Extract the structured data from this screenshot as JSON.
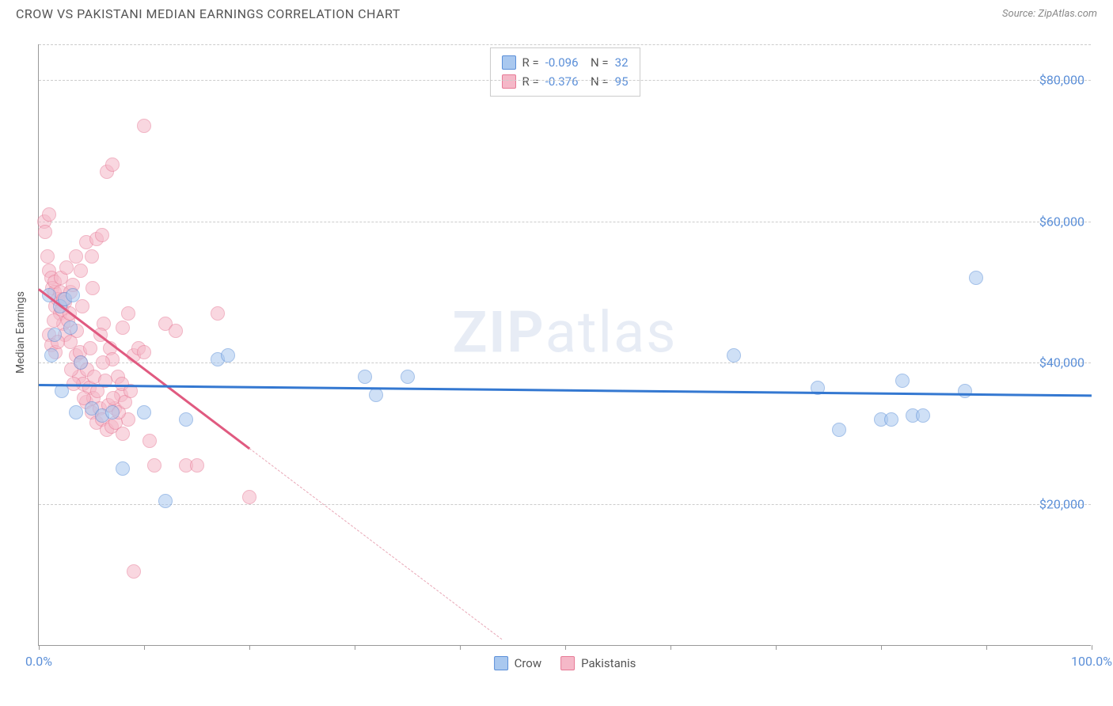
{
  "title": "CROW VS PAKISTANI MEDIAN EARNINGS CORRELATION CHART",
  "source_label": "Source: ZipAtlas.com",
  "y_axis_label": "Median Earnings",
  "watermark_bold": "ZIP",
  "watermark_rest": "atlas",
  "chart": {
    "type": "scatter",
    "xlim": [
      0,
      100
    ],
    "ylim": [
      0,
      85000
    ],
    "x_tick_positions": [
      0,
      10,
      20,
      30,
      40,
      50,
      60,
      70,
      80,
      90,
      100
    ],
    "x_tick_labels": {
      "0": "0.0%",
      "100": "100.0%"
    },
    "y_gridlines": [
      20000,
      40000,
      60000,
      80000
    ],
    "y_tick_labels": [
      "$20,000",
      "$40,000",
      "$60,000",
      "$80,000"
    ],
    "background_color": "#ffffff",
    "grid_color": "#cccccc",
    "axis_color": "#999999",
    "point_radius": 9,
    "point_opacity": 0.55,
    "series": {
      "crow": {
        "label": "Crow",
        "fill_color": "#a9c8ef",
        "stroke_color": "#5b8fd8",
        "r_value": "-0.096",
        "n_value": "32",
        "trend": {
          "x1": 0,
          "y1": 37000,
          "x2": 100,
          "y2": 35500,
          "color": "#3478d1",
          "width": 2.5
        },
        "points": [
          {
            "x": 1.0,
            "y": 49500
          },
          {
            "x": 1.2,
            "y": 41000
          },
          {
            "x": 1.5,
            "y": 44000
          },
          {
            "x": 2.0,
            "y": 48000
          },
          {
            "x": 2.2,
            "y": 36000
          },
          {
            "x": 3.0,
            "y": 45000
          },
          {
            "x": 3.5,
            "y": 33000
          },
          {
            "x": 4.0,
            "y": 40000
          },
          {
            "x": 5.0,
            "y": 33500
          },
          {
            "x": 6.0,
            "y": 32500
          },
          {
            "x": 7.0,
            "y": 33000
          },
          {
            "x": 8.0,
            "y": 25000
          },
          {
            "x": 10.0,
            "y": 33000
          },
          {
            "x": 12.0,
            "y": 20500
          },
          {
            "x": 14.0,
            "y": 32000
          },
          {
            "x": 17.0,
            "y": 40500
          },
          {
            "x": 18.0,
            "y": 41000
          },
          {
            "x": 31.0,
            "y": 38000
          },
          {
            "x": 32.0,
            "y": 35500
          },
          {
            "x": 35.0,
            "y": 38000
          },
          {
            "x": 66.0,
            "y": 41000
          },
          {
            "x": 74.0,
            "y": 36500
          },
          {
            "x": 76.0,
            "y": 30500
          },
          {
            "x": 80.0,
            "y": 32000
          },
          {
            "x": 81.0,
            "y": 32000
          },
          {
            "x": 82.0,
            "y": 37500
          },
          {
            "x": 83.0,
            "y": 32500
          },
          {
            "x": 84.0,
            "y": 32500
          },
          {
            "x": 88.0,
            "y": 36000
          },
          {
            "x": 89.0,
            "y": 52000
          },
          {
            "x": 2.5,
            "y": 49000
          },
          {
            "x": 3.2,
            "y": 49500
          }
        ]
      },
      "pakistanis": {
        "label": "Pakistanis",
        "fill_color": "#f5b8c8",
        "stroke_color": "#e77a96",
        "r_value": "-0.376",
        "n_value": "95",
        "trend_solid": {
          "x1": 0,
          "y1": 50500,
          "x2": 20,
          "y2": 28000,
          "color": "#e05a80",
          "width": 2.5
        },
        "trend_dash": {
          "x1": 20,
          "y1": 28000,
          "x2": 44,
          "y2": 1000,
          "color": "#e8a5b5"
        },
        "points": [
          {
            "x": 0.5,
            "y": 60000
          },
          {
            "x": 0.6,
            "y": 58500
          },
          {
            "x": 0.8,
            "y": 55000
          },
          {
            "x": 1.0,
            "y": 61000
          },
          {
            "x": 1.0,
            "y": 53000
          },
          {
            "x": 1.2,
            "y": 52000
          },
          {
            "x": 1.3,
            "y": 50500
          },
          {
            "x": 1.5,
            "y": 50000
          },
          {
            "x": 1.5,
            "y": 51500
          },
          {
            "x": 1.6,
            "y": 48000
          },
          {
            "x": 1.8,
            "y": 49000
          },
          {
            "x": 2.0,
            "y": 50000
          },
          {
            "x": 2.0,
            "y": 47000
          },
          {
            "x": 2.2,
            "y": 47500
          },
          {
            "x": 2.3,
            "y": 45500
          },
          {
            "x": 2.5,
            "y": 48500
          },
          {
            "x": 2.5,
            "y": 44000
          },
          {
            "x": 2.8,
            "y": 46000
          },
          {
            "x": 3.0,
            "y": 50000
          },
          {
            "x": 3.0,
            "y": 43000
          },
          {
            "x": 3.2,
            "y": 51000
          },
          {
            "x": 3.5,
            "y": 55000
          },
          {
            "x": 3.5,
            "y": 41000
          },
          {
            "x": 3.8,
            "y": 38000
          },
          {
            "x": 4.0,
            "y": 53000
          },
          {
            "x": 4.0,
            "y": 40000
          },
          {
            "x": 4.2,
            "y": 37000
          },
          {
            "x": 4.5,
            "y": 57000
          },
          {
            "x": 4.5,
            "y": 34500
          },
          {
            "x": 4.8,
            "y": 36500
          },
          {
            "x": 5.0,
            "y": 55000
          },
          {
            "x": 5.0,
            "y": 33000
          },
          {
            "x": 5.2,
            "y": 35000
          },
          {
            "x": 5.5,
            "y": 57500
          },
          {
            "x": 5.5,
            "y": 31500
          },
          {
            "x": 5.8,
            "y": 33500
          },
          {
            "x": 6.0,
            "y": 58000
          },
          {
            "x": 6.0,
            "y": 32000
          },
          {
            "x": 6.2,
            "y": 45500
          },
          {
            "x": 6.5,
            "y": 67000
          },
          {
            "x": 6.5,
            "y": 30500
          },
          {
            "x": 6.8,
            "y": 42000
          },
          {
            "x": 7.0,
            "y": 68000
          },
          {
            "x": 7.0,
            "y": 40500
          },
          {
            "x": 7.2,
            "y": 33500
          },
          {
            "x": 7.5,
            "y": 38000
          },
          {
            "x": 7.8,
            "y": 35500
          },
          {
            "x": 8.0,
            "y": 45000
          },
          {
            "x": 8.0,
            "y": 30000
          },
          {
            "x": 8.5,
            "y": 47000
          },
          {
            "x": 8.5,
            "y": 32000
          },
          {
            "x": 9.0,
            "y": 41000
          },
          {
            "x": 9.0,
            "y": 10500
          },
          {
            "x": 9.5,
            "y": 42000
          },
          {
            "x": 10.0,
            "y": 41500
          },
          {
            "x": 10.0,
            "y": 73500
          },
          {
            "x": 10.5,
            "y": 29000
          },
          {
            "x": 11.0,
            "y": 25500
          },
          {
            "x": 12.0,
            "y": 45500
          },
          {
            "x": 13.0,
            "y": 44500
          },
          {
            "x": 14.0,
            "y": 25500
          },
          {
            "x": 15.0,
            "y": 25500
          },
          {
            "x": 17.0,
            "y": 47000
          },
          {
            "x": 20.0,
            "y": 21000
          },
          {
            "x": 1.0,
            "y": 44000
          },
          {
            "x": 1.2,
            "y": 42500
          },
          {
            "x": 1.4,
            "y": 46000
          },
          {
            "x": 1.6,
            "y": 41500
          },
          {
            "x": 1.8,
            "y": 43000
          },
          {
            "x": 2.1,
            "y": 52000
          },
          {
            "x": 2.3,
            "y": 49000
          },
          {
            "x": 2.6,
            "y": 53500
          },
          {
            "x": 2.9,
            "y": 47000
          },
          {
            "x": 3.1,
            "y": 39000
          },
          {
            "x": 3.3,
            "y": 37000
          },
          {
            "x": 3.6,
            "y": 44500
          },
          {
            "x": 3.9,
            "y": 41500
          },
          {
            "x": 4.1,
            "y": 48000
          },
          {
            "x": 4.3,
            "y": 35000
          },
          {
            "x": 4.6,
            "y": 39000
          },
          {
            "x": 4.9,
            "y": 42000
          },
          {
            "x": 5.1,
            "y": 50500
          },
          {
            "x": 5.3,
            "y": 38000
          },
          {
            "x": 5.6,
            "y": 36000
          },
          {
            "x": 5.9,
            "y": 44000
          },
          {
            "x": 6.1,
            "y": 40000
          },
          {
            "x": 6.3,
            "y": 37500
          },
          {
            "x": 6.6,
            "y": 34000
          },
          {
            "x": 6.9,
            "y": 31000
          },
          {
            "x": 7.1,
            "y": 35000
          },
          {
            "x": 7.3,
            "y": 31500
          },
          {
            "x": 7.6,
            "y": 33000
          },
          {
            "x": 7.9,
            "y": 37000
          },
          {
            "x": 8.2,
            "y": 34500
          },
          {
            "x": 8.7,
            "y": 36000
          }
        ]
      }
    }
  }
}
